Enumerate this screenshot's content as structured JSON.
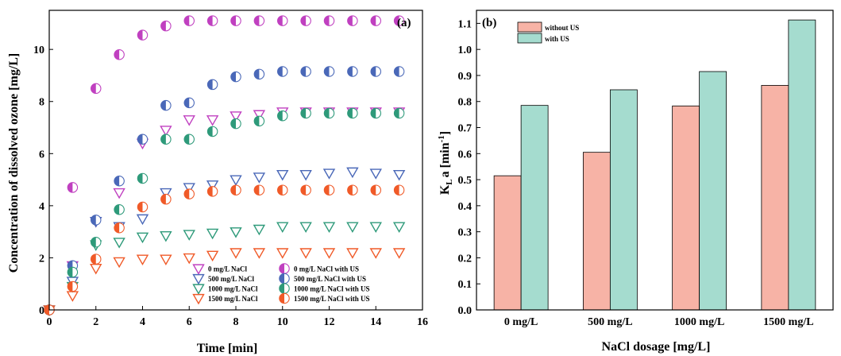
{
  "chart_data": [
    {
      "type": "scatter",
      "panel_label": "(a)",
      "xlabel": "Time [min]",
      "ylabel": "Concentration of dissolved ozone [mg/L]",
      "xlim": [
        0,
        16
      ],
      "ylim": [
        0,
        11.5
      ],
      "xticks": [
        0,
        2,
        4,
        6,
        8,
        10,
        12,
        14,
        16
      ],
      "yticks": [
        0,
        2,
        4,
        6,
        8,
        10
      ],
      "legend_position": "bottom-right",
      "x": [
        0,
        1,
        2,
        3,
        4,
        5,
        6,
        7,
        8,
        9,
        10,
        11,
        12,
        13,
        14,
        15
      ],
      "series": [
        {
          "name": "0 mg/L NaCl",
          "marker": "triangle-down",
          "color": "#C040C0",
          "values": [
            0,
            1.7,
            3.4,
            4.5,
            6.4,
            6.9,
            7.3,
            7.3,
            7.45,
            7.5,
            7.6,
            7.6,
            7.6,
            7.6,
            7.6,
            7.6
          ]
        },
        {
          "name": "500 mg/L NaCl",
          "marker": "triangle-down",
          "color": "#4A68B8",
          "values": [
            0,
            1.1,
            3.4,
            3.2,
            3.5,
            4.5,
            4.7,
            4.8,
            5.0,
            5.1,
            5.2,
            5.2,
            5.25,
            5.3,
            5.25,
            5.2
          ]
        },
        {
          "name": "1000 mg/L NaCl",
          "marker": "triangle-down",
          "color": "#2E9A7A",
          "values": [
            0,
            0.9,
            2.5,
            2.6,
            2.8,
            2.85,
            2.9,
            2.95,
            3.0,
            3.1,
            3.2,
            3.2,
            3.2,
            3.2,
            3.2,
            3.2
          ]
        },
        {
          "name": "1500 mg/L NaCl",
          "marker": "triangle-down",
          "color": "#F05A28",
          "values": [
            0,
            0.55,
            1.6,
            1.85,
            1.95,
            1.95,
            2.0,
            2.1,
            2.2,
            2.2,
            2.2,
            2.2,
            2.2,
            2.2,
            2.2,
            2.2
          ]
        },
        {
          "name": "0 mg/L NaCl with US",
          "marker": "half-circle",
          "color": "#C040C0",
          "values": [
            0,
            4.7,
            8.5,
            9.8,
            10.55,
            10.9,
            11.1,
            11.1,
            11.1,
            11.1,
            11.1,
            11.1,
            11.1,
            11.1,
            11.1,
            11.1
          ]
        },
        {
          "name": "500 mg/L NaCl with US",
          "marker": "half-circle",
          "color": "#4A68B8",
          "values": [
            0,
            1.7,
            3.45,
            4.95,
            6.55,
            7.85,
            7.95,
            8.65,
            8.95,
            9.05,
            9.15,
            9.15,
            9.15,
            9.15,
            9.15,
            9.15
          ]
        },
        {
          "name": "1000 mg/L NaCl with US",
          "marker": "half-circle",
          "color": "#2E9A7A",
          "values": [
            0,
            1.45,
            2.6,
            3.85,
            5.05,
            6.55,
            6.55,
            6.85,
            7.15,
            7.25,
            7.45,
            7.55,
            7.55,
            7.55,
            7.55,
            7.55
          ]
        },
        {
          "name": "1500 mg/L NaCl with US",
          "marker": "half-circle",
          "color": "#F05A28",
          "values": [
            0,
            0.9,
            1.95,
            3.15,
            3.95,
            4.25,
            4.45,
            4.55,
            4.6,
            4.6,
            4.6,
            4.6,
            4.6,
            4.6,
            4.6,
            4.6
          ]
        }
      ]
    },
    {
      "type": "bar",
      "panel_label": "(b)",
      "xlabel": "NaCl dosage [mg/L]",
      "ylabel_main": "K",
      "ylabel_sub": "L",
      "ylabel_rest": "a [min",
      "ylabel_sup": "-1",
      "ylabel_end": "]",
      "categories": [
        "0 mg/L",
        "500 mg/L",
        "1000 mg/L",
        "1500 mg/L"
      ],
      "ylim": [
        0,
        1.15
      ],
      "yticks": [
        "0.0",
        "0.1",
        "0.2",
        "0.3",
        "0.4",
        "0.5",
        "0.6",
        "0.7",
        "0.8",
        "0.9",
        "1.0",
        "1.1"
      ],
      "legend_position": "top-left",
      "series": [
        {
          "name": "without US",
          "color": "#F7B3A6",
          "values": [
            0.515,
            0.605,
            0.783,
            0.862
          ]
        },
        {
          "name": "with US",
          "color": "#A5DCCF",
          "values": [
            0.785,
            0.845,
            0.915,
            1.113
          ]
        }
      ]
    }
  ]
}
